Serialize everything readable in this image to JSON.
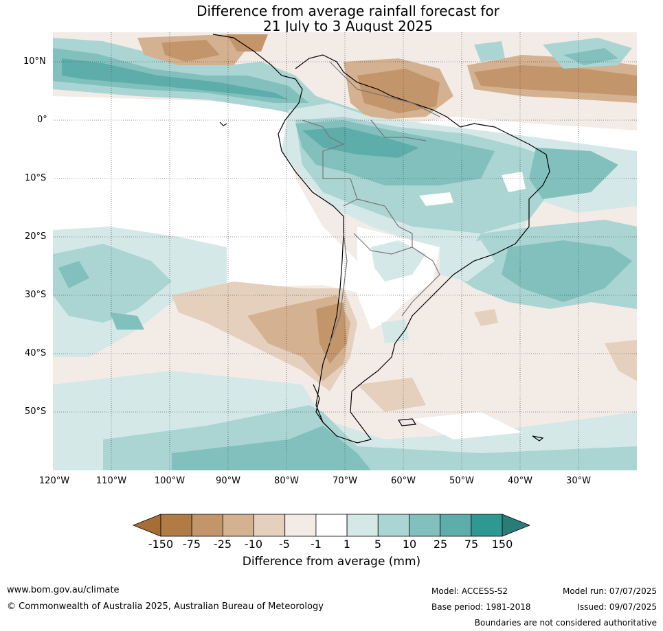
{
  "title": {
    "line1": "Difference from average rainfall forecast for",
    "line2": "21 July to 3 August 2025"
  },
  "map": {
    "lat_labels": [
      "10°N",
      "0°",
      "10°S",
      "20°S",
      "30°S",
      "40°S",
      "50°S"
    ],
    "lon_labels": [
      "120°W",
      "110°W",
      "100°W",
      "90°W",
      "80°W",
      "70°W",
      "60°W",
      "50°W",
      "40°W",
      "30°W"
    ]
  },
  "colorbar": {
    "ticks": [
      "-150",
      "-75",
      "-25",
      "-10",
      "-5",
      "-1",
      "1",
      "5",
      "10",
      "25",
      "75",
      "150"
    ],
    "colors": [
      "#a66e37",
      "#b07b44",
      "#c3956a",
      "#d4b291",
      "#e5d0bd",
      "#f3ebe6",
      "#ffffff",
      "#d4e8e7",
      "#aad5d3",
      "#82c0be",
      "#5daeab",
      "#2f9893",
      "#2a7c78"
    ],
    "label": "Difference from average (mm)"
  },
  "footer": {
    "url": "www.bom.gov.au/climate",
    "copyright": "© Commonwealth of Australia 2025, Australian Bureau of Meteorology",
    "model": "Model: ACCESS-S2",
    "base_period": "Base period: 1981-2018",
    "model_run": "Model run: 07/07/2025",
    "issued": "Issued: 09/07/2025",
    "disclaimer": "Boundaries are not considered authoritative"
  }
}
